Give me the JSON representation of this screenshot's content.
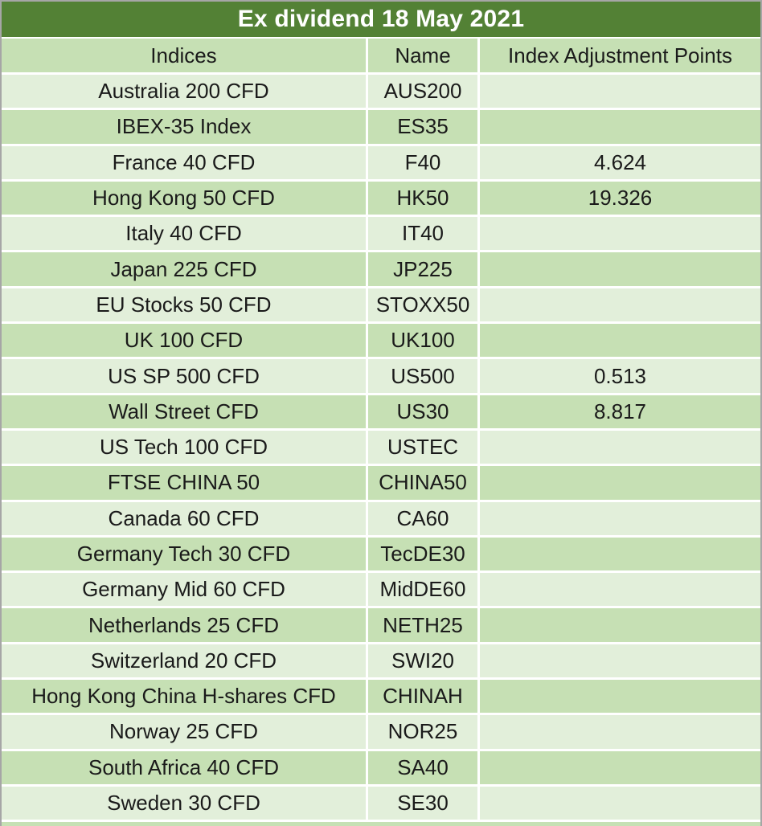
{
  "table": {
    "title": "Ex dividend 18 May 2021",
    "columns": [
      "Indices",
      "Name",
      "Index Adjustment Points"
    ],
    "rows": [
      {
        "indices": "Australia 200 CFD",
        "name": "AUS200",
        "points": ""
      },
      {
        "indices": "IBEX-35 Index",
        "name": "ES35",
        "points": ""
      },
      {
        "indices": "France 40 CFD",
        "name": "F40",
        "points": "4.624"
      },
      {
        "indices": "Hong Kong 50 CFD",
        "name": "HK50",
        "points": "19.326"
      },
      {
        "indices": "Italy 40 CFD",
        "name": "IT40",
        "points": ""
      },
      {
        "indices": "Japan 225 CFD",
        "name": "JP225",
        "points": ""
      },
      {
        "indices": "EU Stocks 50 CFD",
        "name": "STOXX50",
        "points": ""
      },
      {
        "indices": "UK 100 CFD",
        "name": "UK100",
        "points": ""
      },
      {
        "indices": "US SP 500 CFD",
        "name": "US500",
        "points": "0.513"
      },
      {
        "indices": "Wall Street CFD",
        "name": "US30",
        "points": "8.817"
      },
      {
        "indices": "US Tech 100 CFD",
        "name": "USTEC",
        "points": ""
      },
      {
        "indices": "FTSE CHINA 50",
        "name": "CHINA50",
        "points": ""
      },
      {
        "indices": "Canada 60 CFD",
        "name": "CA60",
        "points": ""
      },
      {
        "indices": "Germany Tech 30 CFD",
        "name": "TecDE30",
        "points": ""
      },
      {
        "indices": "Germany Mid 60 CFD",
        "name": "MidDE60",
        "points": ""
      },
      {
        "indices": "Netherlands 25 CFD",
        "name": "NETH25",
        "points": ""
      },
      {
        "indices": "Switzerland 20 CFD",
        "name": "SWI20",
        "points": ""
      },
      {
        "indices": "Hong Kong China H-shares CFD",
        "name": "CHINAH",
        "points": ""
      },
      {
        "indices": "Norway 25 CFD",
        "name": "NOR25",
        "points": ""
      },
      {
        "indices": "South Africa 40 CFD",
        "name": "SA40",
        "points": ""
      },
      {
        "indices": "Sweden 30 CFD",
        "name": "SE30",
        "points": ""
      }
    ]
  },
  "colors": {
    "title_bg": "#538135",
    "title_text": "#ffffff",
    "row_light": "#e2efda",
    "row_medium": "#c6e0b4",
    "grid_white": "#ffffff",
    "edge_gray": "#a6a6a6",
    "cell_text": "#1a1a1a"
  }
}
